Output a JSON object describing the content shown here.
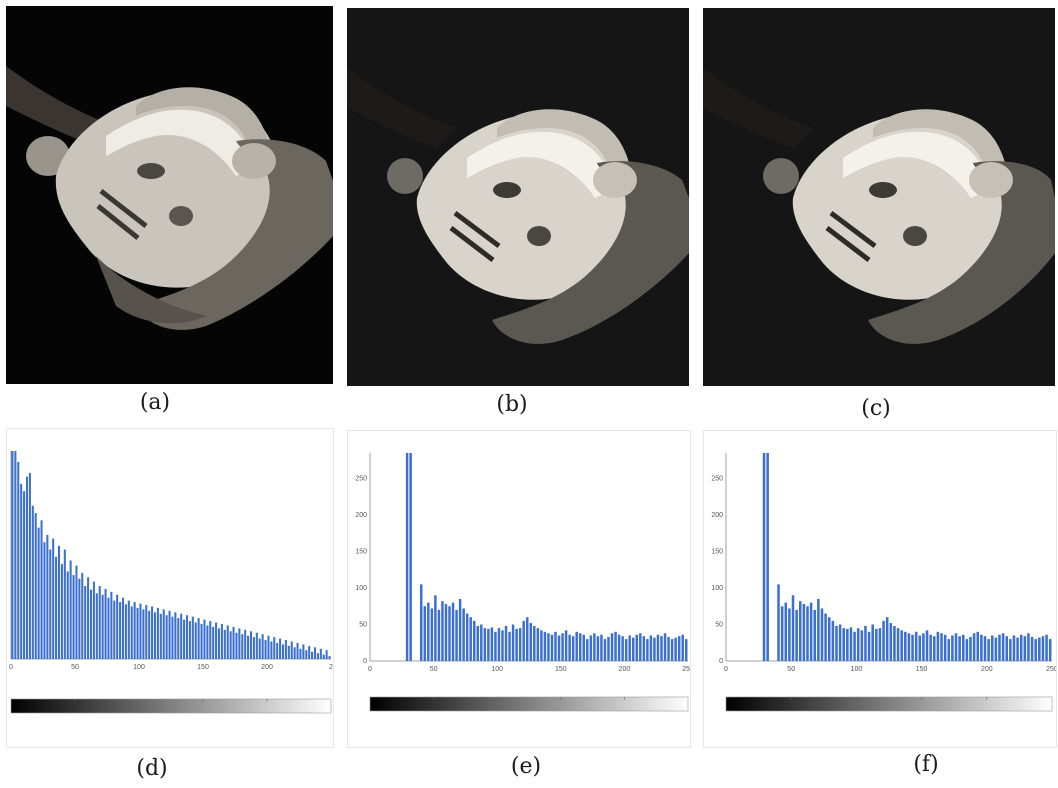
{
  "figure": {
    "captions": [
      "(a)",
      "(b)",
      "(c)",
      "(d)",
      "(e)",
      "(f)"
    ],
    "panels": [
      {
        "id": "a",
        "kind": "photo",
        "content": "marble statue head held in hands, dark background",
        "tone": "original"
      },
      {
        "id": "b",
        "kind": "photo",
        "content": "marble statue head held in hands, dark background",
        "tone": "equalized"
      },
      {
        "id": "c",
        "kind": "photo",
        "content": "marble statue head held in hands, dark background",
        "tone": "equalized"
      }
    ],
    "colors": {
      "bar": "#3b6fd0",
      "photo_bg": "#0d0d0d",
      "stone": "#e6e3dc"
    }
  },
  "chart_data": [
    {
      "type": "bar",
      "panel": "d",
      "xlim": [
        0,
        255
      ],
      "ylim": [
        0,
        285
      ],
      "x_ticks": [
        "0",
        "50",
        "100",
        "150",
        "200",
        "2"
      ],
      "y_ticks": [],
      "grid": false,
      "colorbar": "grayscale gradient black to white",
      "series": [
        {
          "values": [
            285,
            285,
            270,
            240,
            230,
            250,
            255,
            210,
            200,
            180,
            190,
            160,
            170,
            150,
            165,
            140,
            155,
            130,
            150,
            120,
            135,
            115,
            128,
            110,
            118,
            100,
            112,
            95,
            106,
            90,
            100,
            88,
            96,
            84,
            92,
            80,
            88,
            78,
            84,
            75,
            80,
            72,
            78,
            70,
            76,
            68,
            74,
            66,
            72,
            64,
            70,
            62,
            68,
            60,
            66,
            58,
            64,
            56,
            62,
            54,
            60,
            52,
            58,
            50,
            56,
            48,
            54,
            46,
            52,
            44,
            50,
            42,
            48,
            40,
            46,
            38,
            44,
            36,
            42,
            34,
            40,
            32,
            38,
            30,
            36,
            28,
            34,
            26,
            32,
            24,
            30,
            22,
            28,
            20,
            26,
            18,
            24,
            16,
            22,
            14,
            20,
            12,
            18,
            10,
            16,
            8,
            14,
            6,
            12,
            4
          ]
        }
      ]
    },
    {
      "type": "bar",
      "panel": "e",
      "xlim": [
        0,
        255
      ],
      "ylim": [
        0,
        285
      ],
      "x_ticks": [
        "0",
        "50",
        "100",
        "150",
        "200",
        "250"
      ],
      "y_ticks": [
        "0",
        "50",
        "100",
        "150",
        "200",
        "250"
      ],
      "grid": false,
      "colorbar": "grayscale gradient black to white",
      "series": [
        {
          "values": [
            0,
            0,
            0,
            0,
            0,
            0,
            0,
            0,
            0,
            0,
            285,
            285,
            0,
            0,
            105,
            75,
            80,
            72,
            90,
            70,
            82,
            78,
            75,
            80,
            70,
            85,
            72,
            65,
            60,
            55,
            48,
            50,
            45,
            44,
            46,
            40,
            45,
            42,
            48,
            40,
            50,
            44,
            45,
            55,
            60,
            52,
            48,
            45,
            42,
            40,
            38,
            36,
            40,
            35,
            38,
            42,
            36,
            34,
            40,
            38,
            36,
            30,
            35,
            38,
            34,
            36,
            30,
            33,
            38,
            40,
            36,
            34,
            30,
            35,
            32,
            36,
            38,
            34,
            30,
            35,
            32,
            36,
            34,
            38,
            33,
            30,
            32,
            34,
            36,
            30
          ]
        }
      ]
    },
    {
      "type": "bar",
      "panel": "f",
      "xlim": [
        0,
        255
      ],
      "ylim": [
        0,
        285
      ],
      "x_ticks": [
        "0",
        "50",
        "100",
        "150",
        "200",
        "250"
      ],
      "y_ticks": [
        "0",
        "50",
        "100",
        "150",
        "200",
        "250"
      ],
      "grid": false,
      "colorbar": "grayscale gradient black to white",
      "series": [
        {
          "values": [
            0,
            0,
            0,
            0,
            0,
            0,
            0,
            0,
            0,
            0,
            285,
            285,
            0,
            0,
            105,
            75,
            80,
            72,
            90,
            70,
            82,
            78,
            75,
            80,
            70,
            85,
            72,
            65,
            60,
            55,
            48,
            50,
            45,
            44,
            46,
            40,
            45,
            42,
            48,
            40,
            50,
            44,
            45,
            55,
            60,
            52,
            48,
            45,
            42,
            40,
            38,
            36,
            40,
            35,
            38,
            42,
            36,
            34,
            40,
            38,
            36,
            30,
            35,
            38,
            34,
            36,
            30,
            33,
            38,
            40,
            36,
            34,
            30,
            35,
            32,
            36,
            38,
            34,
            30,
            35,
            32,
            36,
            34,
            38,
            33,
            30,
            32,
            34,
            36,
            30
          ]
        }
      ]
    }
  ]
}
